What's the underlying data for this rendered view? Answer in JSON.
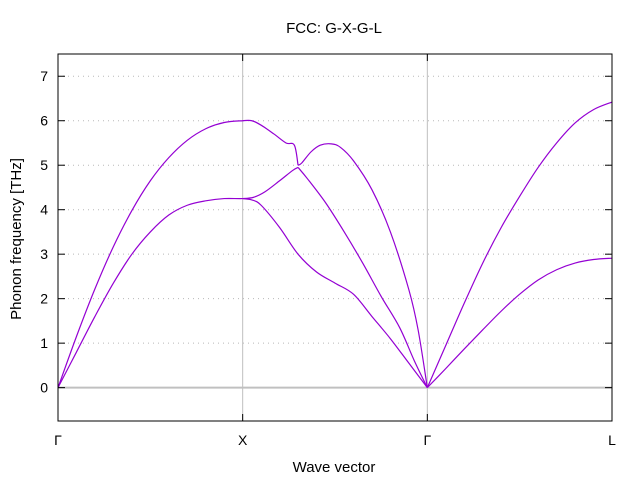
{
  "chart_data": {
    "type": "line",
    "title": "FCC: G-X-G-L",
    "xlabel": "Wave vector",
    "ylabel": "Phonon frequency [THz]",
    "ylim": [
      -0.75,
      7.5
    ],
    "yticks": [
      0,
      1,
      2,
      3,
      4,
      5,
      6,
      7
    ],
    "xlim": [
      0,
      3
    ],
    "xticks": [
      {
        "x": 0,
        "label": "Γ"
      },
      {
        "x": 1,
        "label": "X"
      },
      {
        "x": 2,
        "label": "Γ"
      },
      {
        "x": 3,
        "label": "L"
      }
    ],
    "grid": {
      "y": "dotted",
      "x_at_symmetry_points": true
    },
    "zero_line": true,
    "line_color": "#9400d3",
    "zero_line_color": "#c0c0c0",
    "series": [
      {
        "points": [
          [
            0,
            0
          ],
          [
            0.1,
            1.15
          ],
          [
            0.2,
            2.22
          ],
          [
            0.3,
            3.17
          ],
          [
            0.4,
            3.98
          ],
          [
            0.5,
            4.65
          ],
          [
            0.6,
            5.17
          ],
          [
            0.7,
            5.56
          ],
          [
            0.8,
            5.82
          ],
          [
            0.9,
            5.96
          ],
          [
            1.0,
            6.0
          ],
          [
            1.05,
            6.0
          ],
          [
            1.1,
            5.9
          ],
          [
            1.17,
            5.7
          ],
          [
            1.235,
            5.5
          ],
          [
            1.28,
            5.45
          ],
          [
            1.3,
            5.0
          ]
        ]
      },
      {
        "points": [
          [
            1.3,
            5.0
          ],
          [
            1.32,
            5.05
          ],
          [
            1.37,
            5.3
          ],
          [
            1.42,
            5.45
          ],
          [
            1.48,
            5.48
          ],
          [
            1.53,
            5.4
          ],
          [
            1.6,
            5.1
          ],
          [
            1.7,
            4.45
          ],
          [
            1.8,
            3.5
          ],
          [
            1.9,
            2.2
          ],
          [
            1.95,
            1.3
          ],
          [
            2.0,
            0
          ]
        ]
      },
      {
        "points": [
          [
            0,
            0
          ],
          [
            0.1,
            0.8
          ],
          [
            0.2,
            1.6
          ],
          [
            0.3,
            2.35
          ],
          [
            0.4,
            3.0
          ],
          [
            0.5,
            3.5
          ],
          [
            0.6,
            3.88
          ],
          [
            0.7,
            4.1
          ],
          [
            0.8,
            4.2
          ],
          [
            0.9,
            4.25
          ],
          [
            1.0,
            4.25
          ],
          [
            1.06,
            4.28
          ],
          [
            1.12,
            4.4
          ],
          [
            1.2,
            4.65
          ],
          [
            1.27,
            4.88
          ],
          [
            1.3,
            4.95
          ]
        ]
      },
      {
        "points": [
          [
            1.3,
            4.95
          ],
          [
            1.35,
            4.7
          ],
          [
            1.45,
            4.15
          ],
          [
            1.55,
            3.5
          ],
          [
            1.65,
            2.8
          ],
          [
            1.75,
            2.05
          ],
          [
            1.85,
            1.35
          ],
          [
            1.93,
            0.6
          ],
          [
            2.0,
            0
          ]
        ]
      },
      {
        "points": [
          [
            1.0,
            4.25
          ],
          [
            1.05,
            4.22
          ],
          [
            1.1,
            4.1
          ],
          [
            1.2,
            3.6
          ],
          [
            1.3,
            3.0
          ],
          [
            1.4,
            2.6
          ],
          [
            1.5,
            2.35
          ],
          [
            1.6,
            2.1
          ],
          [
            1.7,
            1.6
          ],
          [
            1.8,
            1.1
          ],
          [
            1.9,
            0.55
          ],
          [
            2.0,
            0
          ]
        ]
      },
      {
        "points": [
          [
            2.0,
            0
          ],
          [
            2.1,
            0.43
          ],
          [
            2.2,
            0.87
          ],
          [
            2.3,
            1.3
          ],
          [
            2.4,
            1.72
          ],
          [
            2.5,
            2.1
          ],
          [
            2.6,
            2.42
          ],
          [
            2.7,
            2.65
          ],
          [
            2.8,
            2.8
          ],
          [
            2.9,
            2.88
          ],
          [
            3.0,
            2.91
          ]
        ]
      },
      {
        "points": [
          [
            2.0,
            0
          ],
          [
            2.1,
            0.95
          ],
          [
            2.2,
            1.9
          ],
          [
            2.3,
            2.8
          ],
          [
            2.4,
            3.6
          ],
          [
            2.5,
            4.3
          ],
          [
            2.6,
            4.95
          ],
          [
            2.7,
            5.5
          ],
          [
            2.8,
            5.95
          ],
          [
            2.9,
            6.25
          ],
          [
            3.0,
            6.42
          ]
        ]
      }
    ]
  }
}
